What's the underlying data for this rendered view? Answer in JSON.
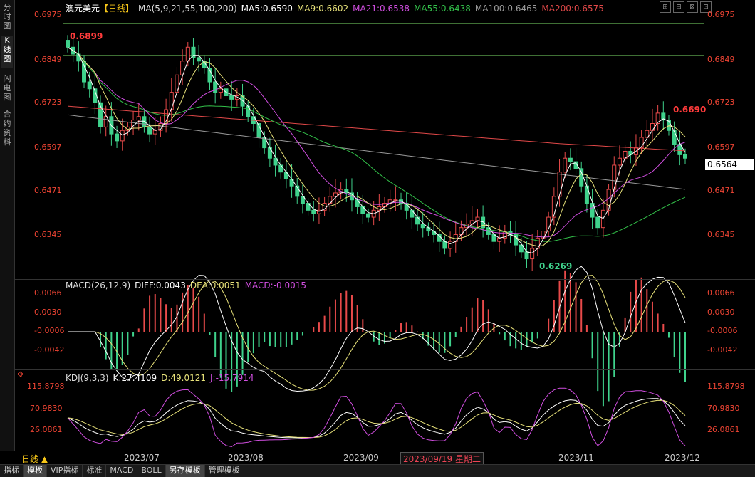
{
  "side_tabs": [
    "分时图",
    "K线图",
    "闪电图",
    "合约资料"
  ],
  "toolbar_icons": [
    "⊞",
    "⊟",
    "⊠",
    "⊡"
  ],
  "header": {
    "instrument": "澳元美元",
    "period_tag": "【日线】",
    "ma_label": "MA(5,9,21,55,100,200)",
    "ma5": "MA5:0.6590",
    "ma9": "MA9:0.6602",
    "ma21": "MA21:0.6538",
    "ma55": "MA55:0.6438",
    "ma100": "MA100:0.6465",
    "ma200": "MA200:0.6575"
  },
  "colors": {
    "up": "#e84a4a",
    "down": "#3fd28c",
    "ma5": "#ffffff",
    "ma9": "#e8e27a",
    "ma21": "#d14ee0",
    "ma55": "#33c24a",
    "ma100": "#999999",
    "ma200": "#e04848",
    "hline": "#7ee06a"
  },
  "price_axis": [
    "0.6975",
    "0.6849",
    "0.6723",
    "0.6597",
    "0.6471",
    "0.6345"
  ],
  "annotations": {
    "high": "0.6899",
    "low": "0.6269",
    "recent_high": "0.6690",
    "current": "0.6564"
  },
  "macd": {
    "label": "MACD(26,12,9)",
    "diff": "DIFF:0.0043",
    "dea": "DEA:0.0051",
    "macd": "MACD:-0.0015",
    "axis": [
      "0.0066",
      "0.0030",
      "-0.0006",
      "-0.0042"
    ]
  },
  "kdj": {
    "label": "KDJ(9,3,3)",
    "k": "K:27.4109",
    "d": "D:49.0121",
    "j": "J:-15.7914",
    "axis": [
      "115.8798",
      "70.9830",
      "26.0861"
    ]
  },
  "x_axis": [
    "2023/07",
    "2023/08",
    "2023/09",
    "2023/11",
    "2023/12"
  ],
  "period": "日线 ▲",
  "cross_date": "2023/09/19 星期二",
  "bottom_tabs": [
    {
      "label": "指标",
      "active": false
    },
    {
      "label": "模板",
      "active": true
    },
    {
      "label": "VIP指标",
      "active": false
    },
    {
      "label": "标准",
      "active": false
    },
    {
      "label": "MACD",
      "active": false
    },
    {
      "label": "BOLL",
      "active": false
    },
    {
      "label": "另存模板",
      "active": true
    },
    {
      "label": "管理模板",
      "active": false
    }
  ],
  "chart_data": {
    "type": "candlestick",
    "title": "澳元美元",
    "ylim": [
      0.62,
      0.7
    ],
    "close_path": [
      0.688,
      0.686,
      0.684,
      0.678,
      0.676,
      0.672,
      0.665,
      0.668,
      0.663,
      0.661,
      0.664,
      0.665,
      0.667,
      0.668,
      0.665,
      0.663,
      0.664,
      0.666,
      0.67,
      0.675,
      0.68,
      0.684,
      0.688,
      0.685,
      0.684,
      0.682,
      0.678,
      0.675,
      0.676,
      0.674,
      0.673,
      0.674,
      0.671,
      0.668,
      0.666,
      0.662,
      0.659,
      0.656,
      0.654,
      0.652,
      0.65,
      0.648,
      0.645,
      0.643,
      0.641,
      0.64,
      0.641,
      0.643,
      0.645,
      0.646,
      0.647,
      0.646,
      0.644,
      0.642,
      0.64,
      0.639,
      0.641,
      0.642,
      0.643,
      0.644,
      0.644,
      0.643,
      0.641,
      0.639,
      0.637,
      0.636,
      0.635,
      0.634,
      0.632,
      0.63,
      0.632,
      0.634,
      0.636,
      0.637,
      0.638,
      0.639,
      0.636,
      0.634,
      0.632,
      0.633,
      0.635,
      0.634,
      0.631,
      0.629,
      0.627,
      0.63,
      0.633,
      0.635,
      0.639,
      0.645,
      0.652,
      0.656,
      0.655,
      0.653,
      0.648,
      0.643,
      0.639,
      0.636,
      0.641,
      0.647,
      0.654,
      0.656,
      0.658,
      0.657,
      0.659,
      0.662,
      0.664,
      0.666,
      0.669,
      0.667,
      0.664,
      0.66,
      0.657,
      0.656
    ]
  }
}
